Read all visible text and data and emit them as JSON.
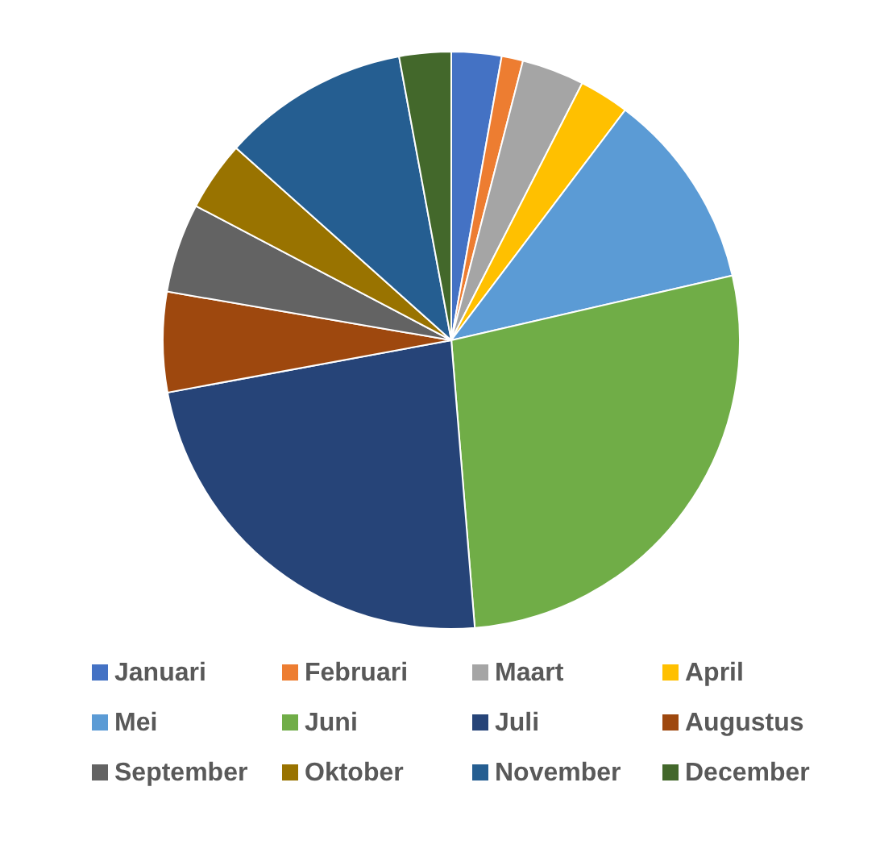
{
  "chart_data": {
    "type": "pie",
    "categories": [
      "Januari",
      "Februari",
      "Maart",
      "April",
      "Mei",
      "Juni",
      "Juli",
      "Augustus",
      "September",
      "Oktober",
      "November",
      "December"
    ],
    "values": [
      2.8,
      1.2,
      3.5,
      2.8,
      11.1,
      27.3,
      23.4,
      5.6,
      5.0,
      3.9,
      10.5,
      2.9
    ],
    "colors": [
      "#4472c4",
      "#ed7d31",
      "#a5a5a5",
      "#ffc000",
      "#5b9bd5",
      "#70ad47",
      "#264478",
      "#9e480e",
      "#636363",
      "#997300",
      "#255e91",
      "#43682b"
    ],
    "legend": "bottom"
  }
}
